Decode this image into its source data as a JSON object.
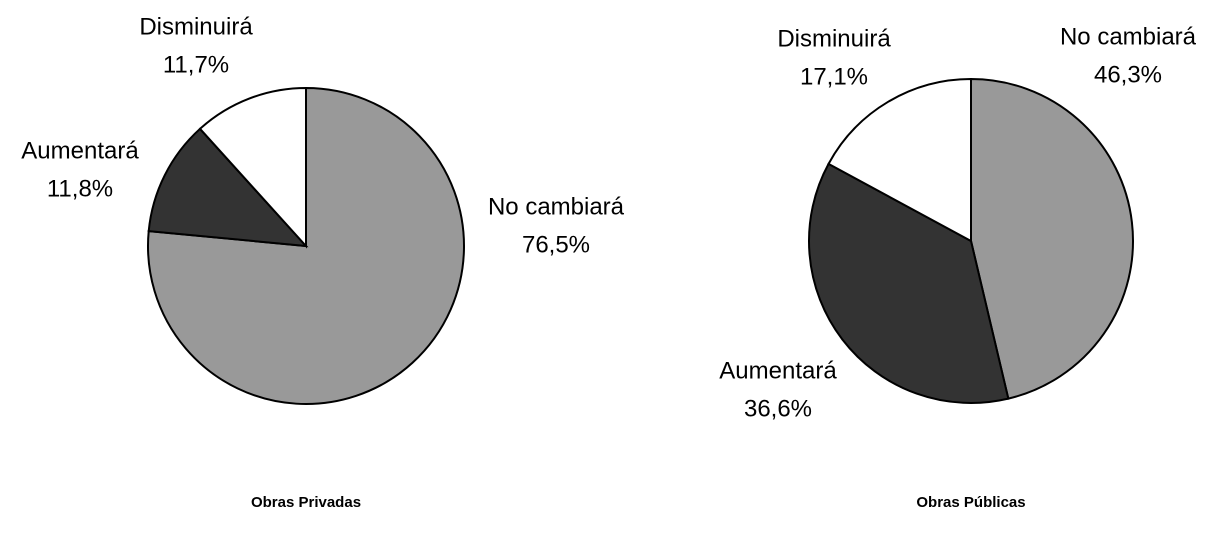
{
  "chart_data": [
    {
      "type": "pie",
      "title": "Obras Privadas",
      "categories": [
        "No cambiará",
        "Aumentará",
        "Disminuirá"
      ],
      "values": [
        76.5,
        11.8,
        11.7
      ],
      "value_labels": [
        "76,5%",
        "11,8%",
        "11,7%"
      ],
      "colors": [
        "#999999",
        "#333333",
        "#ffffff"
      ]
    },
    {
      "type": "pie",
      "title": "Obras Públicas",
      "categories": [
        "No cambiará",
        "Aumentará",
        "Disminuirá"
      ],
      "values": [
        46.3,
        36.6,
        17.1
      ],
      "value_labels": [
        "46,3%",
        "36,6%",
        "17,1%"
      ],
      "colors": [
        "#999999",
        "#333333",
        "#ffffff"
      ]
    }
  ]
}
